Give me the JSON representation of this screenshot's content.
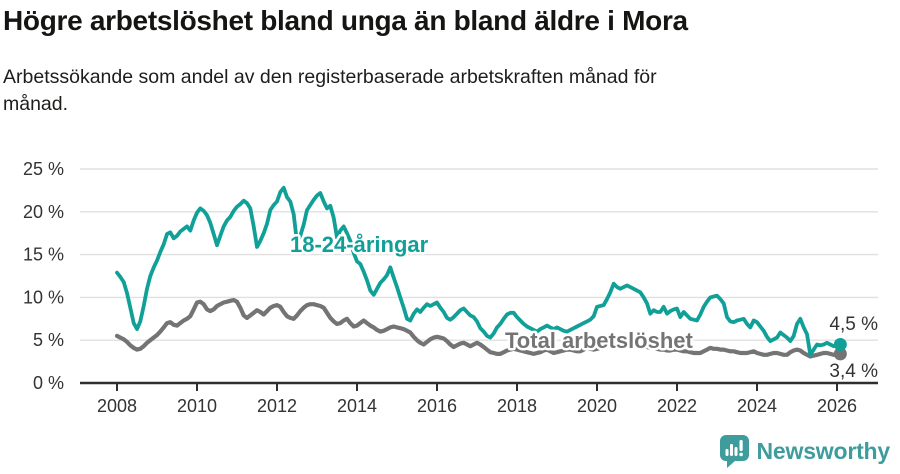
{
  "header": {
    "title": "Högre arbetslöshet bland unga än bland äldre i Mora",
    "subtitle_line1": "Arbetssökande som andel av den registerbaserade arbetskraften månad för",
    "subtitle_line2": "månad."
  },
  "footer": {
    "brand": "Newsworthy",
    "logo_icon": "speech-bubble-bar-chart"
  },
  "colors": {
    "youth_line": "#11a098",
    "total_line": "#747474",
    "axis_line": "#2e2e2e",
    "gridline": "#e0e0e0",
    "tick_text": "#333333",
    "value_label_text": "#333333",
    "brand_teal": "#3f9c9d",
    "background": "#ffffff"
  },
  "chart_data": {
    "type": "line",
    "title": "Högre arbetslöshet bland unga än bland äldre i Mora",
    "subtitle": "Arbetssökande som andel av den registerbaserade arbetskraften månad för månad.",
    "frequency": "monthly",
    "x_start": "2008-01",
    "x_end": "2026-02",
    "grid": true,
    "legend_position": "inline-labels",
    "y_axis": {
      "min": 0,
      "max": 25,
      "ticks": [
        {
          "value": 0,
          "label": "0 %"
        },
        {
          "value": 5,
          "label": "5 %"
        },
        {
          "value": 10,
          "label": "10 %"
        },
        {
          "value": 15,
          "label": "15 %"
        },
        {
          "value": 20,
          "label": "20 %"
        },
        {
          "value": 25,
          "label": "25 %"
        }
      ]
    },
    "x_axis": {
      "ticks": [
        {
          "value": 2008,
          "label": "2008"
        },
        {
          "value": 2010,
          "label": "2010"
        },
        {
          "value": 2012,
          "label": "2012"
        },
        {
          "value": 2014,
          "label": "2014"
        },
        {
          "value": 2016,
          "label": "2016"
        },
        {
          "value": 2018,
          "label": "2018"
        },
        {
          "value": 2020,
          "label": "2020"
        },
        {
          "value": 2022,
          "label": "2022"
        },
        {
          "value": 2024,
          "label": "2024"
        },
        {
          "value": 2026,
          "label": "2026"
        }
      ]
    },
    "series": [
      {
        "id": "total",
        "label": "Total arbetslöshet",
        "color": "#747474",
        "end_label": "3,4 %",
        "end_value": 3.4,
        "values": [
          5.5,
          5.3,
          5.1,
          4.8,
          4.4,
          4.1,
          3.9,
          4.0,
          4.3,
          4.7,
          5.0,
          5.3,
          5.6,
          6.0,
          6.5,
          7.0,
          7.1,
          6.8,
          6.7,
          7.0,
          7.3,
          7.5,
          7.8,
          8.6,
          9.4,
          9.5,
          9.2,
          8.6,
          8.4,
          8.6,
          9.0,
          9.2,
          9.4,
          9.5,
          9.6,
          9.7,
          9.5,
          8.8,
          7.9,
          7.6,
          7.9,
          8.2,
          8.5,
          8.3,
          8.0,
          8.4,
          8.8,
          9.0,
          9.1,
          8.9,
          8.3,
          7.8,
          7.6,
          7.5,
          7.9,
          8.4,
          8.8,
          9.1,
          9.2,
          9.2,
          9.1,
          9.0,
          8.8,
          8.2,
          7.6,
          7.2,
          6.9,
          7.0,
          7.3,
          7.5,
          7.0,
          6.6,
          6.7,
          7.0,
          7.3,
          7.0,
          6.7,
          6.5,
          6.2,
          6.0,
          6.1,
          6.3,
          6.5,
          6.6,
          6.5,
          6.4,
          6.3,
          6.1,
          5.9,
          5.4,
          5.0,
          4.7,
          4.5,
          4.8,
          5.1,
          5.3,
          5.4,
          5.3,
          5.2,
          4.9,
          4.5,
          4.2,
          4.4,
          4.6,
          4.7,
          4.5,
          4.3,
          4.5,
          4.7,
          4.5,
          4.2,
          3.9,
          3.6,
          3.5,
          3.4,
          3.4,
          3.6,
          3.8,
          3.9,
          4.0,
          3.9,
          3.8,
          3.7,
          3.6,
          3.5,
          3.4,
          3.5,
          3.6,
          3.8,
          3.9,
          3.7,
          3.5,
          3.6,
          3.7,
          3.8,
          3.9,
          3.9,
          3.8,
          3.7,
          3.7,
          3.9,
          4.1,
          4.0,
          3.9,
          4.0,
          4.1,
          4.3,
          4.5,
          4.7,
          4.9,
          4.8,
          4.7,
          4.5,
          4.4,
          4.3,
          4.3,
          4.4,
          4.4,
          4.3,
          4.2,
          4.1,
          4.1,
          4.0,
          3.9,
          3.9,
          3.8,
          3.8,
          3.9,
          3.9,
          3.8,
          3.7,
          3.7,
          3.6,
          3.5,
          3.5,
          3.5,
          3.7,
          3.9,
          4.1,
          4.0,
          4.0,
          3.9,
          3.9,
          3.8,
          3.7,
          3.7,
          3.6,
          3.5,
          3.5,
          3.5,
          3.6,
          3.7,
          3.5,
          3.4,
          3.3,
          3.3,
          3.4,
          3.5,
          3.5,
          3.4,
          3.3,
          3.3,
          3.6,
          3.8,
          3.9,
          3.8,
          3.5,
          3.3,
          3.1,
          3.2,
          3.3,
          3.4,
          3.5,
          3.5,
          3.4,
          3.3,
          3.3,
          3.4
        ]
      },
      {
        "id": "youth",
        "label": "18-24-åringar",
        "color": "#11a098",
        "end_label": "4,5 %",
        "end_value": 4.5,
        "values": [
          12.9,
          12.4,
          11.8,
          10.5,
          8.8,
          7.0,
          6.3,
          7.2,
          9.0,
          11.0,
          12.5,
          13.5,
          14.3,
          15.3,
          16.2,
          17.4,
          17.6,
          16.9,
          17.2,
          17.7,
          18.0,
          18.3,
          17.8,
          19.0,
          19.9,
          20.4,
          20.1,
          19.6,
          18.7,
          17.4,
          16.1,
          17.2,
          18.3,
          19.0,
          19.4,
          20.1,
          20.6,
          20.9,
          21.3,
          21.0,
          20.4,
          18.3,
          15.9,
          16.6,
          17.5,
          18.6,
          20.2,
          20.8,
          21.2,
          22.3,
          22.8,
          21.7,
          21.2,
          19.7,
          16.4,
          17.2,
          18.5,
          20.2,
          20.8,
          21.4,
          21.9,
          22.2,
          21.2,
          20.4,
          20.7,
          19.3,
          17.0,
          17.8,
          18.3,
          17.5,
          16.6,
          15.2,
          14.2,
          13.9,
          13.0,
          12.0,
          10.8,
          10.3,
          11.0,
          11.7,
          12.1,
          12.6,
          13.5,
          12.3,
          11.2,
          10.0,
          8.8,
          7.5,
          7.3,
          8.1,
          8.6,
          8.3,
          8.8,
          9.2,
          9.0,
          9.2,
          9.4,
          8.8,
          8.3,
          7.6,
          7.4,
          7.7,
          8.1,
          8.5,
          8.7,
          8.3,
          7.9,
          7.7,
          7.2,
          6.4,
          6.0,
          5.5,
          5.3,
          5.8,
          6.5,
          6.9,
          7.5,
          8.0,
          8.2,
          8.2,
          7.7,
          7.3,
          6.9,
          6.6,
          6.4,
          6.2,
          6.0,
          6.3,
          6.5,
          6.7,
          6.5,
          6.3,
          6.5,
          6.3,
          6.1,
          6.0,
          6.2,
          6.4,
          6.6,
          6.8,
          7.0,
          7.2,
          7.4,
          7.8,
          8.9,
          9.0,
          9.1,
          9.8,
          10.6,
          11.6,
          11.2,
          11.0,
          11.2,
          11.4,
          11.2,
          11.0,
          10.8,
          10.6,
          10.0,
          9.3,
          8.1,
          8.5,
          8.3,
          8.3,
          8.9,
          8.1,
          8.4,
          8.6,
          8.7,
          7.7,
          8.3,
          7.9,
          7.5,
          7.4,
          7.3,
          8.0,
          8.9,
          9.5,
          10.0,
          10.1,
          10.2,
          9.8,
          9.3,
          7.7,
          7.2,
          7.1,
          7.3,
          7.4,
          7.5,
          6.9,
          6.5,
          7.3,
          7.1,
          6.6,
          6.1,
          5.4,
          4.9,
          5.1,
          5.3,
          5.9,
          5.6,
          5.3,
          4.9,
          5.5,
          6.9,
          7.5,
          6.5,
          5.7,
          3.3,
          3.9,
          4.5,
          4.4,
          4.5,
          4.7,
          4.5,
          4.3,
          4.4,
          4.5
        ]
      }
    ]
  }
}
